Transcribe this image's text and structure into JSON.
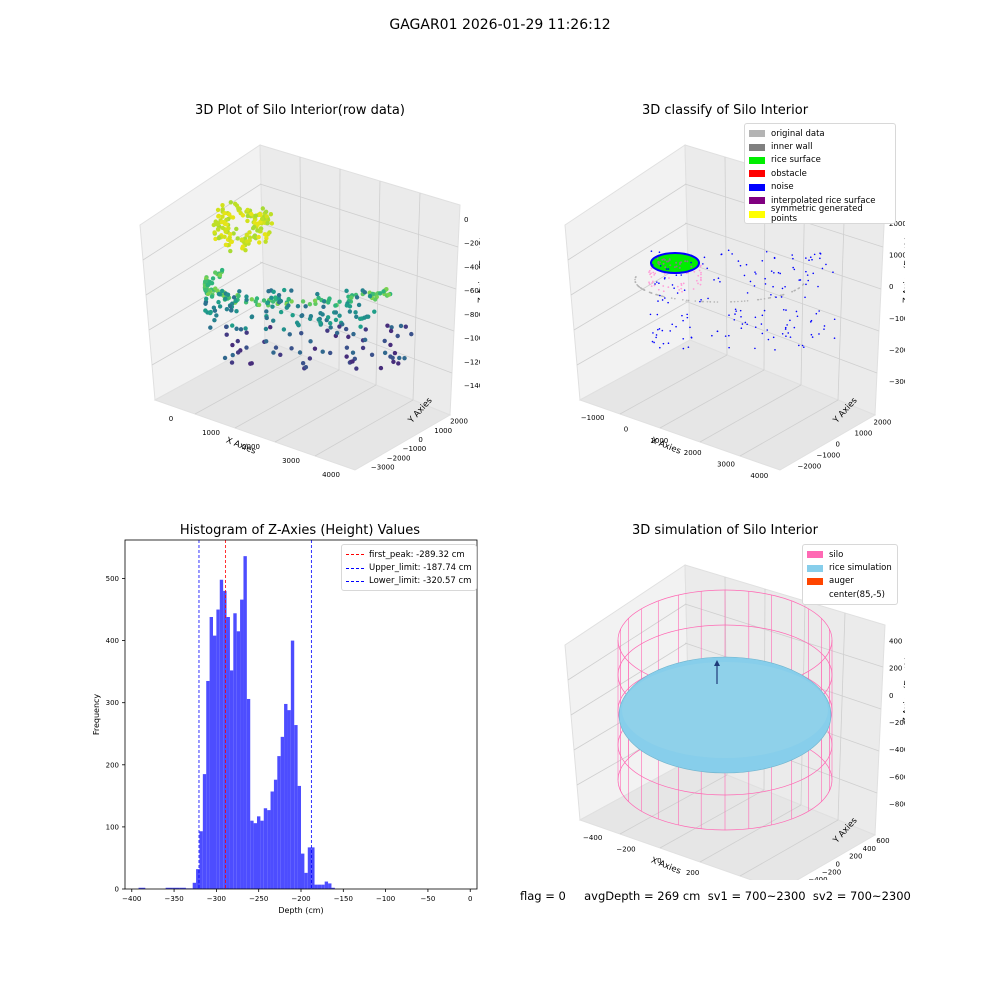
{
  "figure": {
    "suptitle": "GAGAR01 2026-01-29 11:26:12",
    "footer": "flag = 0     avgDepth = 269 cm  sv1 = 700~2300  sv2 = 700~2300"
  },
  "chart_data": [
    {
      "type": "scatter",
      "title": "3D Plot of Silo Interior(row data)",
      "xlabel": "X Axies",
      "ylabel": "Y Axies",
      "zlabel": "Z Axies (Depth)",
      "x_ticks": [
        "0",
        "1000",
        "2000",
        "3000",
        "4000"
      ],
      "y_ticks": [
        "2000",
        "1000",
        "0",
        "−1000",
        "−2000",
        "−3000"
      ],
      "z_ticks": [
        "0",
        "−200",
        "−400",
        "−600",
        "−800",
        "−1000",
        "−1200",
        "−1400"
      ],
      "colormap": "viridis"
    },
    {
      "type": "scatter",
      "title": "3D classify of Silo Interior",
      "xlabel": "X Axies",
      "ylabel": "Y Axies",
      "zlabel": "Z Axies (Depth)",
      "x_ticks": [
        "−1000",
        "0",
        "1000",
        "2000",
        "3000",
        "4000"
      ],
      "y_ticks": [
        "2000",
        "1000",
        "0",
        "−1000",
        "−2000"
      ],
      "z_ticks": [
        "2000",
        "1000",
        "0",
        "−1000",
        "−2000",
        "−3000"
      ],
      "legend": [
        {
          "label": "original data",
          "color": "#b4b4b4"
        },
        {
          "label": "inner wall",
          "color": "#808080"
        },
        {
          "label": "rice surface",
          "color": "#00ee00"
        },
        {
          "label": "obstacle",
          "color": "#ff0000"
        },
        {
          "label": "noise",
          "color": "#0000ff"
        },
        {
          "label": "interpolated rice surface",
          "color": "#800080"
        },
        {
          "label": "symmetric generated points",
          "color": "#ffff00"
        }
      ]
    },
    {
      "type": "bar",
      "title": "Histogram of Z-Axies (Height) Values",
      "xlabel": "Depth (cm)",
      "ylabel": "Frequency",
      "xlim": [
        -408,
        8
      ],
      "ylim": [
        0,
        562
      ],
      "x_ticks": [
        -400,
        -350,
        -300,
        -250,
        -200,
        -150,
        -100,
        -50,
        0
      ],
      "y_ticks": [
        0,
        100,
        200,
        300,
        400,
        500
      ],
      "bar_color": "#4d4dff",
      "bins": [
        [
          -392,
          -384,
          2
        ],
        [
          -360,
          -352,
          2
        ],
        [
          -352,
          -344,
          2
        ],
        [
          -344,
          -336,
          2
        ],
        [
          -336,
          -328,
          1
        ],
        [
          -328,
          -324,
          10
        ],
        [
          -324,
          -320,
          32
        ],
        [
          -320,
          -316,
          93
        ],
        [
          -316,
          -312,
          185
        ],
        [
          -312,
          -308,
          335
        ],
        [
          -308,
          -304,
          438
        ],
        [
          -304,
          -300,
          408
        ],
        [
          -300,
          -296,
          450
        ],
        [
          -296,
          -292,
          498
        ],
        [
          -292,
          -288,
          480
        ],
        [
          -288,
          -284,
          438
        ],
        [
          -284,
          -280,
          352
        ],
        [
          -280,
          -276,
          444
        ],
        [
          -276,
          -272,
          415
        ],
        [
          -272,
          -268,
          466
        ],
        [
          -268,
          -264,
          536
        ],
        [
          -264,
          -260,
          306
        ],
        [
          -260,
          -256,
          110
        ],
        [
          -256,
          -252,
          106
        ],
        [
          -252,
          -248,
          117
        ],
        [
          -248,
          -244,
          110
        ],
        [
          -244,
          -240,
          130
        ],
        [
          -240,
          -236,
          127
        ],
        [
          -236,
          -232,
          157
        ],
        [
          -232,
          -228,
          176
        ],
        [
          -228,
          -224,
          214
        ],
        [
          -224,
          -220,
          245
        ],
        [
          -220,
          -216,
          298
        ],
        [
          -216,
          -212,
          288
        ],
        [
          -212,
          -208,
          400
        ],
        [
          -208,
          -204,
          264
        ],
        [
          -204,
          -200,
          166
        ],
        [
          -200,
          -196,
          57
        ],
        [
          -196,
          -192,
          26
        ],
        [
          -192,
          -188,
          67
        ],
        [
          -188,
          -184,
          67
        ],
        [
          -184,
          -180,
          7
        ],
        [
          -180,
          -176,
          7
        ],
        [
          -176,
          -172,
          7
        ],
        [
          -172,
          -168,
          12
        ],
        [
          -168,
          -164,
          9
        ],
        [
          -164,
          -160,
          2
        ]
      ],
      "vlines": [
        {
          "label": "first_peak: -289.32 cm",
          "x": -289.32,
          "color": "#ff0000"
        },
        {
          "label": "Upper_limit: -187.74 cm",
          "x": -187.74,
          "color": "#0000ff"
        },
        {
          "label": "Lower_limit: -320.57 cm",
          "x": -320.57,
          "color": "#0000ff"
        }
      ]
    },
    {
      "type": "scatter",
      "title": "3D simulation of Silo Interior",
      "xlabel": "X Axies",
      "ylabel": "Y Axies",
      "zlabel": "Z Axies (Depth)",
      "x_ticks": [
        "−400",
        "−200",
        "0",
        "200",
        "400",
        "600"
      ],
      "y_ticks": [
        "600",
        "400",
        "200",
        "0",
        "−200",
        "−400",
        "−600"
      ],
      "z_ticks": [
        "400",
        "200",
        "0",
        "−200",
        "−400",
        "−600",
        "−800"
      ],
      "legend": [
        {
          "label": "silo",
          "color": "#ff69b4"
        },
        {
          "label": "rice simulation",
          "color": "#87ceeb"
        },
        {
          "label": "auger",
          "color": "#ff4500"
        },
        {
          "label": "center(85,-5)",
          "color": "#ffffff"
        }
      ]
    }
  ]
}
